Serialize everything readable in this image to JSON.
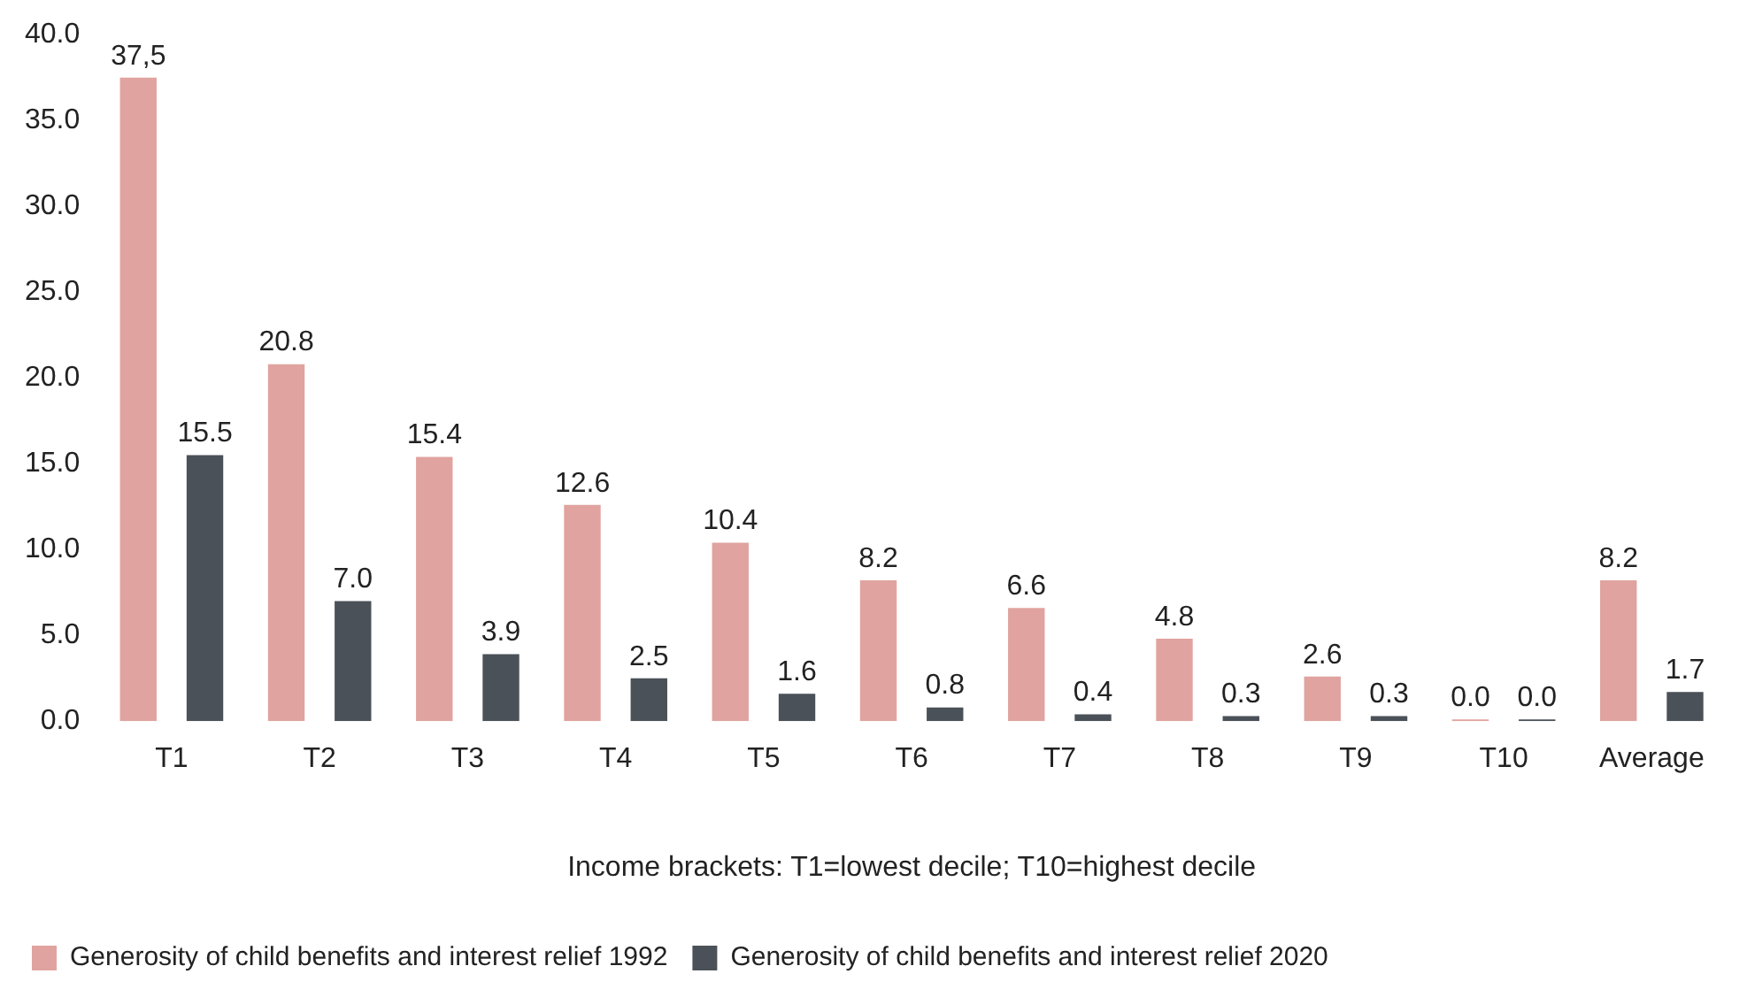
{
  "chart_data": {
    "type": "bar",
    "xlabel": "Income brackets: T1=lowest decile; T10=highest decile",
    "categories": [
      "T1",
      "T2",
      "T3",
      "T4",
      "T5",
      "T6",
      "T7",
      "T8",
      "T9",
      "T10",
      "Average"
    ],
    "series": [
      {
        "name": "Generosity of child benefits and interest relief 1992",
        "color": "#e0a39f",
        "values": [
          37.5,
          20.8,
          15.4,
          12.6,
          10.4,
          8.2,
          6.6,
          4.8,
          2.6,
          0.0,
          8.2
        ],
        "value_labels": [
          "37,5",
          "20.8",
          "15.4",
          "12.6",
          "10.4",
          "8.2",
          "6.6",
          "4.8",
          "2.6",
          "0.0",
          "8.2"
        ]
      },
      {
        "name": "Generosity of child benefits and interest relief 2020",
        "color": "#4b5158",
        "values": [
          15.5,
          7.0,
          3.9,
          2.5,
          1.6,
          0.8,
          0.4,
          0.3,
          0.3,
          0.0,
          1.7
        ],
        "value_labels": [
          "15.5",
          "7.0",
          "3.9",
          "2.5",
          "1.6",
          "0.8",
          "0.4",
          "0.3",
          "0.3",
          "0.0",
          "1.7"
        ]
      }
    ],
    "ylim": [
      0,
      40
    ],
    "yticks": [
      {
        "value": 0,
        "label": "0.0"
      },
      {
        "value": 5,
        "label": "5.0"
      },
      {
        "value": 10,
        "label": "10.0"
      },
      {
        "value": 15,
        "label": "15.0"
      },
      {
        "value": 20,
        "label": "20.0"
      },
      {
        "value": 25,
        "label": "25.0"
      },
      {
        "value": 30,
        "label": "30.0"
      },
      {
        "value": 35,
        "label": "35.0"
      },
      {
        "value": 40,
        "label": "40.0"
      }
    ],
    "grid": false,
    "legend": "bottom"
  }
}
